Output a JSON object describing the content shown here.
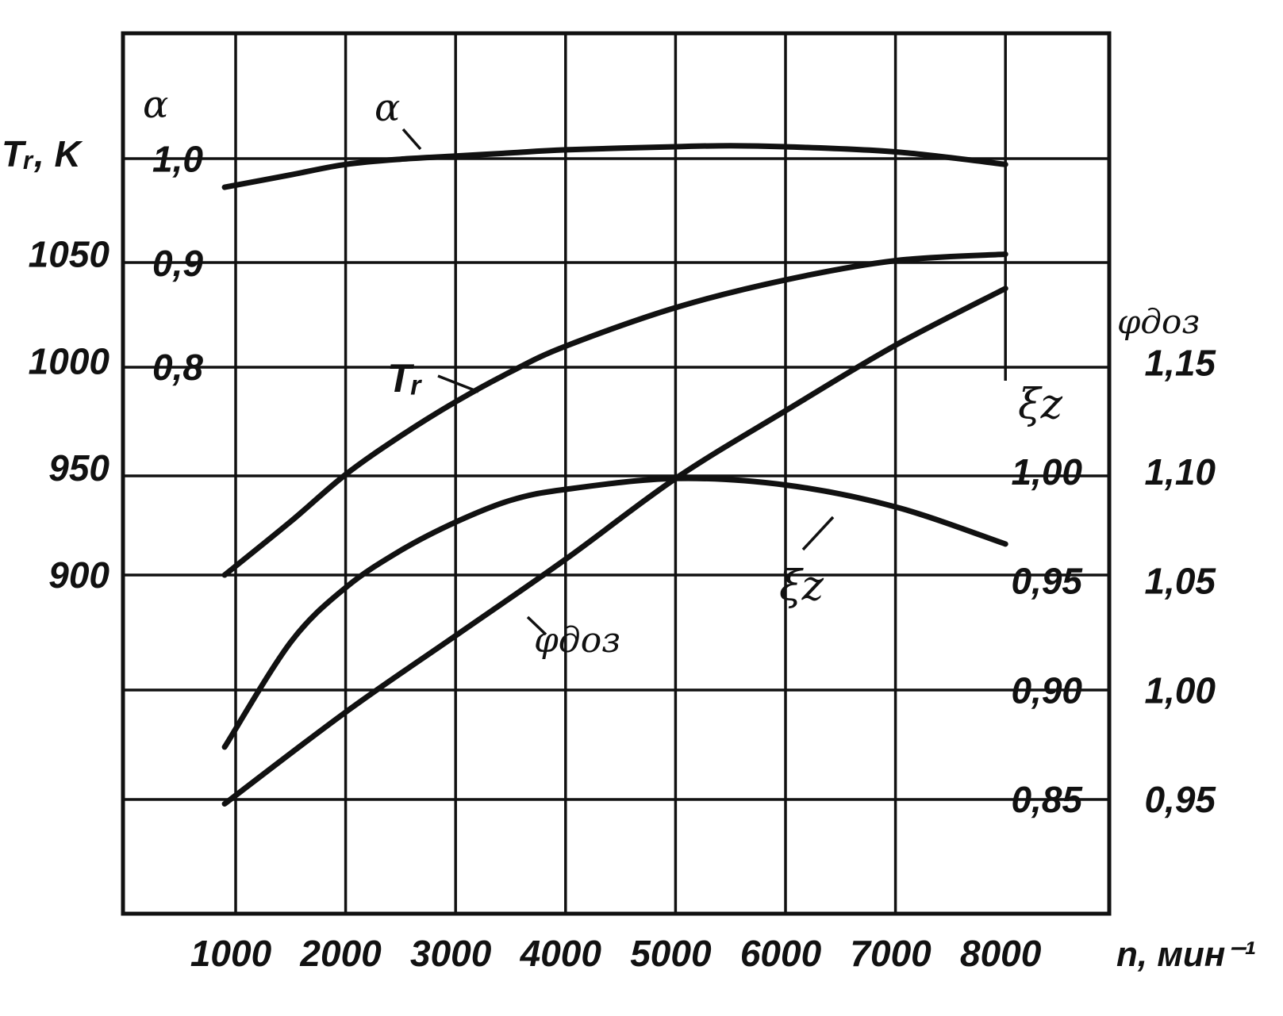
{
  "chart_data": {
    "type": "line",
    "x": [
      1000,
      2000,
      3000,
      4000,
      5000,
      6000,
      7000,
      8000
    ],
    "xlim": [
      0,
      8700
    ],
    "x_tick_labels": [
      "1000",
      "2000",
      "3000",
      "4000",
      "5000",
      "6000",
      "7000",
      "8000"
    ],
    "xlabel": "n, мин⁻¹",
    "grid": true,
    "axes": {
      "Tr": {
        "label": "Tᵣ, K",
        "side": "left-outer",
        "ticks": [
          900,
          950,
          1000,
          1050
        ],
        "tick_labels": [
          "900",
          "950",
          "1000",
          "1050"
        ]
      },
      "alpha": {
        "label": "α",
        "side": "left-inner",
        "ticks": [
          0.8,
          0.9,
          1.0
        ],
        "tick_labels": [
          "0,8",
          "0,9",
          "1,0"
        ]
      },
      "xi": {
        "label": "ξz",
        "side": "right-inner",
        "ticks": [
          0.85,
          0.9,
          0.95,
          1.0
        ],
        "tick_labels": [
          "0,85",
          "0,90",
          "0,95",
          "1,00"
        ]
      },
      "phi": {
        "label": "φдоз",
        "side": "right-outer",
        "ticks": [
          0.95,
          1.0,
          1.05,
          1.1,
          1.15
        ],
        "tick_labels": [
          "0,95",
          "1,00",
          "1,05",
          "1,10",
          "1,15"
        ]
      }
    },
    "series": [
      {
        "name": "α",
        "axis": "alpha",
        "x": [
          900,
          1500,
          2000,
          2500,
          3000,
          3500,
          4000,
          5000,
          5500,
          6000,
          7000,
          8000
        ],
        "y": [
          0.973,
          0.985,
          0.995,
          1.0,
          1.003,
          1.006,
          1.009,
          1.012,
          1.013,
          1.012,
          1.007,
          0.995
        ]
      },
      {
        "name": "Tᵣ",
        "axis": "Tr",
        "x": [
          900,
          1500,
          2000,
          2500,
          3000,
          3500,
          4000,
          5000,
          6000,
          7000,
          8000
        ],
        "y": [
          900,
          925,
          947,
          965,
          981,
          995,
          1007,
          1025,
          1038,
          1047,
          1050
        ]
      },
      {
        "name": "ξz",
        "axis": "xi",
        "x": [
          900,
          1500,
          2000,
          2500,
          3000,
          3500,
          4000,
          5000,
          6000,
          7000,
          8000
        ],
        "y": [
          0.874,
          0.922,
          0.947,
          0.964,
          0.977,
          0.987,
          0.992,
          0.997,
          0.994,
          0.984,
          0.967
        ]
      },
      {
        "name": "φдоз",
        "axis": "phi",
        "x": [
          900,
          2000,
          3000,
          4000,
          5000,
          6000,
          7000,
          8000
        ],
        "y": [
          0.948,
          0.99,
          1.025,
          1.06,
          1.097,
          1.128,
          1.158,
          1.184
        ]
      }
    ]
  }
}
